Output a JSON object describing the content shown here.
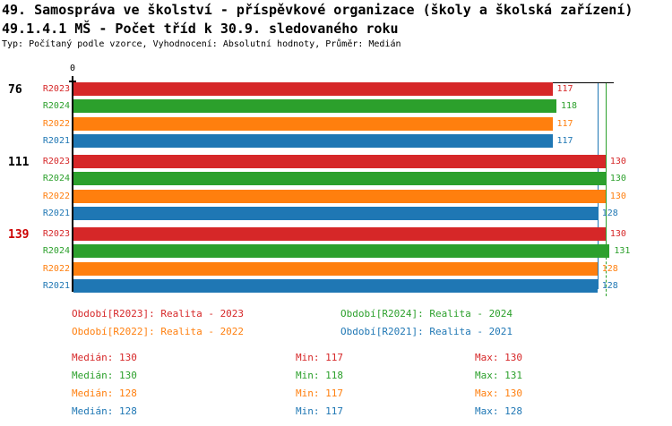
{
  "title": {
    "line1": "49. Samospráva ve školství - příspěvkové organizace (školy a školská zařízení)",
    "line2": "49.1.4.1 MŠ - Počet tříd k 30.9. sledovaného roku",
    "line3": "Typ: Počítaný podle vzorce, Vyhodnocení: Absolutní hodnoty, Průměr: Medián"
  },
  "colors": {
    "R2023": "#d62728",
    "R2024": "#2ca02c",
    "R2022": "#ff7f0e",
    "R2021": "#1f77b4",
    "axis": "#000000",
    "group_label_default": "#000000",
    "group_label_highlight": "#cc0000"
  },
  "chart_data": {
    "type": "bar",
    "orientation": "horizontal",
    "x_axis": {
      "zero_label": "0",
      "xlim": [
        0,
        132
      ],
      "gridlines": false
    },
    "series_order": [
      "R2023",
      "R2024",
      "R2022",
      "R2021"
    ],
    "groups": [
      {
        "label": "76",
        "highlight": false,
        "rows": [
          {
            "series": "R2023",
            "row_label": "R2023",
            "value": 117
          },
          {
            "series": "R2024",
            "row_label": "R2024",
            "value": 118
          },
          {
            "series": "R2022",
            "row_label": "R2022",
            "value": 117
          },
          {
            "series": "R2021",
            "row_label": "R2021",
            "value": 117
          }
        ]
      },
      {
        "label": "111",
        "highlight": false,
        "rows": [
          {
            "series": "R2023",
            "row_label": "R2023",
            "value": 130
          },
          {
            "series": "R2024",
            "row_label": "R2024",
            "value": 130
          },
          {
            "series": "R2022",
            "row_label": "R2022",
            "value": 130
          },
          {
            "series": "R2021",
            "row_label": "R2021",
            "value": 128
          }
        ]
      },
      {
        "label": "139",
        "highlight": true,
        "rows": [
          {
            "series": "R2023",
            "row_label": "R2023",
            "value": 130
          },
          {
            "series": "R2024",
            "row_label": "R2024",
            "value": 131
          },
          {
            "series": "R2022",
            "row_label": "R2022",
            "value": 128
          },
          {
            "series": "R2021",
            "row_label": "R2021",
            "value": 128
          }
        ]
      }
    ],
    "median_lines": [
      {
        "series": "R2024",
        "value": 130
      },
      {
        "series": "R2021",
        "value": 128
      }
    ]
  },
  "legend": [
    {
      "series": "R2023",
      "label": "Období[R2023]: Realita - 2023"
    },
    {
      "series": "R2024",
      "label": "Období[R2024]: Realita - 2024"
    },
    {
      "series": "R2022",
      "label": "Období[R2022]: Realita - 2022"
    },
    {
      "series": "R2021",
      "label": "Období[R2021]: Realita - 2021"
    }
  ],
  "stats": [
    {
      "series": "R2023",
      "median": "Medián: 130",
      "min": "Min: 117",
      "max": "Max: 130"
    },
    {
      "series": "R2024",
      "median": "Medián: 130",
      "min": "Min: 118",
      "max": "Max: 131"
    },
    {
      "series": "R2022",
      "median": "Medián: 128",
      "min": "Min: 117",
      "max": "Max: 130"
    },
    {
      "series": "R2021",
      "median": "Medián: 128",
      "min": "Min: 117",
      "max": "Max: 128"
    }
  ]
}
